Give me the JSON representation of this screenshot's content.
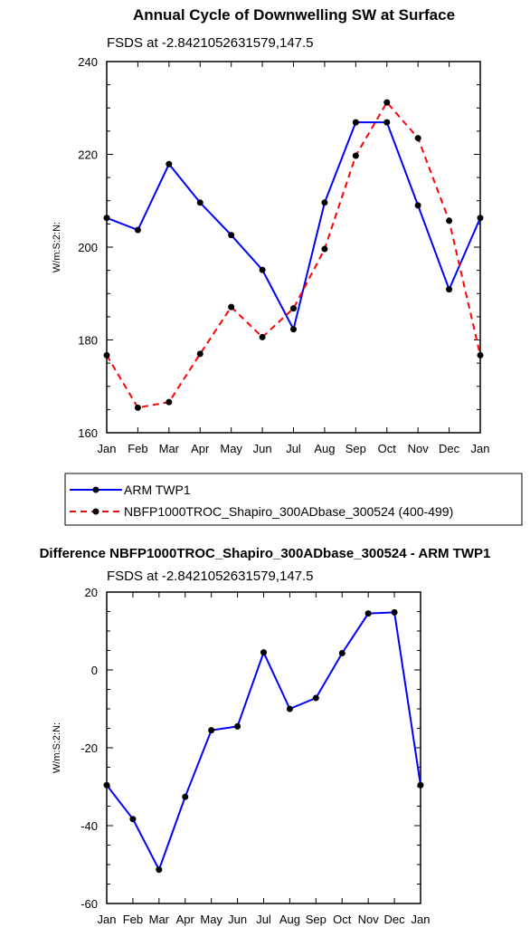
{
  "chart_data": [
    {
      "type": "line",
      "title": "Annual Cycle of Downwelling SW at Surface",
      "subtitle": "FSDS at -2.8421052631579,147.5",
      "ylabel": "W/m:S:2:N:",
      "xlabel": "",
      "categories": [
        "Jan",
        "Feb",
        "Mar",
        "Apr",
        "May",
        "Jun",
        "Jul",
        "Aug",
        "Sep",
        "Oct",
        "Nov",
        "Dec",
        "Jan"
      ],
      "ylim": [
        160,
        240
      ],
      "yticks": [
        160,
        180,
        200,
        220,
        240
      ],
      "grid": false,
      "legend_position": "bottom",
      "series": [
        {
          "name": "ARM TWP1",
          "color": "#0000ff",
          "dash": "solid",
          "marker": "filled-circle",
          "values": [
            206.3,
            203.7,
            217.9,
            209.6,
            202.6,
            195.1,
            182.3,
            209.6,
            226.9,
            226.9,
            209.0,
            190.9,
            206.3
          ]
        },
        {
          "name": "NBFP1000TROC_Shapiro_300ADbase_300524 (400-499)",
          "color": "#ff0000",
          "dash": "dashed",
          "marker": "filled-circle",
          "values": [
            176.7,
            165.4,
            166.6,
            177.0,
            187.1,
            180.6,
            186.8,
            199.6,
            219.7,
            231.2,
            223.5,
            205.7,
            176.7
          ]
        }
      ]
    },
    {
      "type": "line",
      "title": "Difference NBFP1000TROC_Shapiro_300ADbase_300524 - ARM TWP1",
      "subtitle": "FSDS at -2.8421052631579,147.5",
      "ylabel": "W/m:S:2:N:",
      "xlabel": "",
      "categories": [
        "Jan",
        "Feb",
        "Mar",
        "Apr",
        "May",
        "Jun",
        "Jul",
        "Aug",
        "Sep",
        "Oct",
        "Nov",
        "Dec",
        "Jan"
      ],
      "ylim": [
        -60,
        20
      ],
      "yticks": [
        -60,
        -40,
        -20,
        0,
        20
      ],
      "grid": false,
      "series": [
        {
          "color": "#0000ff",
          "dash": "solid",
          "marker": "filled-circle",
          "values": [
            -29.6,
            -38.3,
            -51.3,
            -32.6,
            -15.5,
            -14.5,
            4.5,
            -10.0,
            -7.2,
            4.3,
            14.5,
            14.8,
            -29.6
          ]
        }
      ]
    }
  ]
}
